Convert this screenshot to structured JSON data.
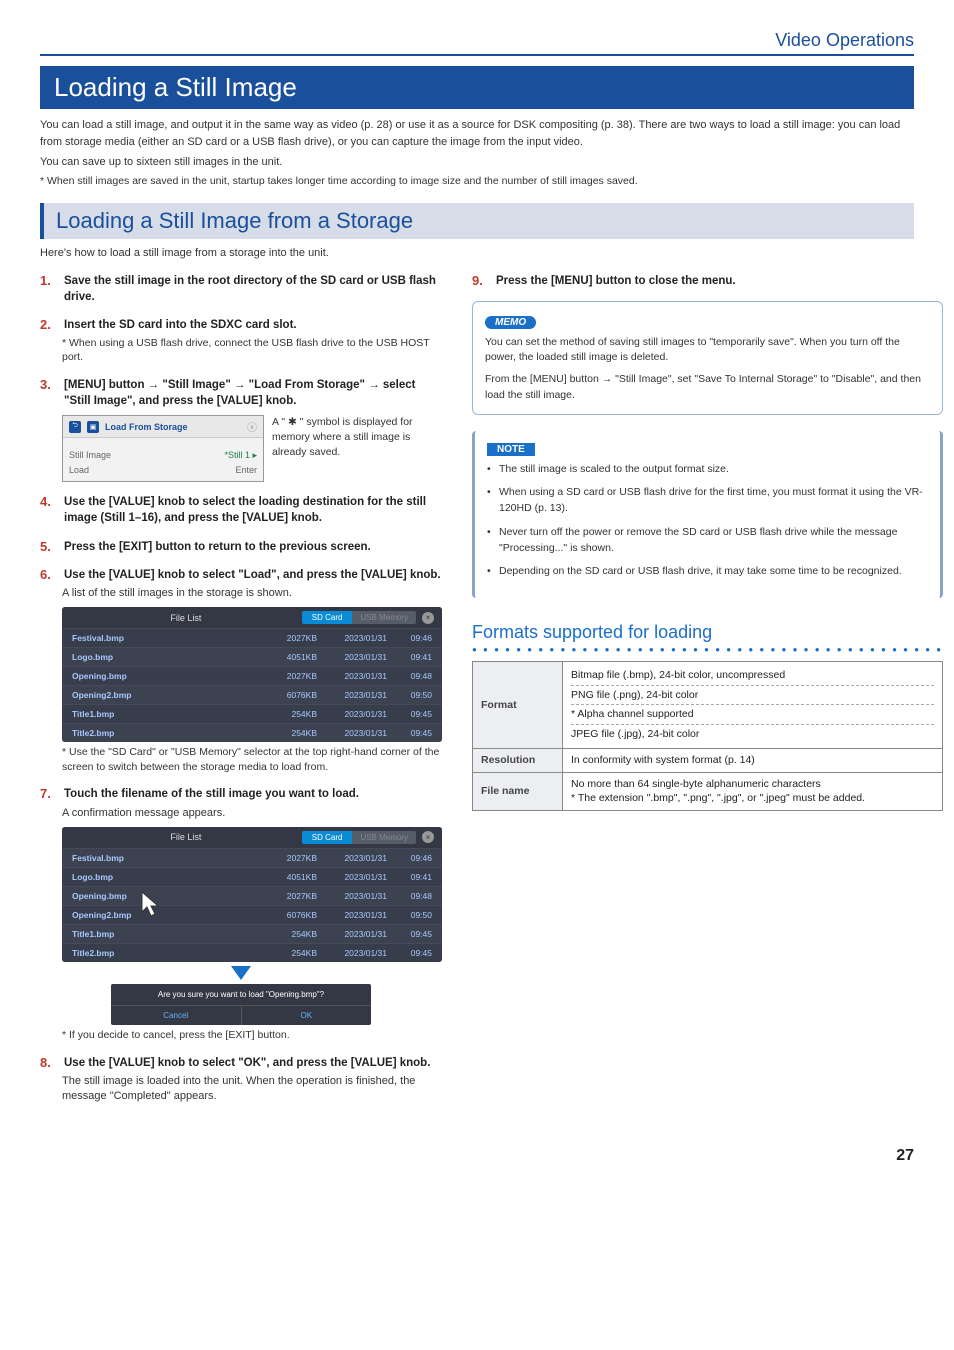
{
  "header": {
    "section": "Video Operations"
  },
  "h1": "Loading a Still Image",
  "intro1": "You can load a still image, and output it in the same way as video (p. 28) or use it as a source for DSK compositing (p. 38). There are two ways to load a still image: you can load from storage media (either an SD card or a USB flash drive), or you can capture the image from the input video.",
  "intro2": "You can save up to sixteen still images in the unit.",
  "footnote_top": "* When still images are saved in the unit, startup takes longer time according to image size and the number of still images saved.",
  "h2": "Loading a Still Image from a Storage",
  "h2_sub": "Here's how to load a still image from a storage into the unit.",
  "steps": {
    "s1": {
      "n": "1.",
      "t": "Save the still image in the root directory of the SD card or USB flash drive."
    },
    "s2": {
      "n": "2.",
      "t": "Insert the SD card into the SDXC card slot.",
      "note": "* When using a USB flash drive, connect the USB flash drive to the USB HOST port."
    },
    "s3": {
      "n": "3.",
      "t": "[MENU] button → \"Still Image\" → \"Load From Storage\" → select \"Still Image\", and press the [VALUE] knob."
    },
    "s3_ui": {
      "title": "Load From Storage",
      "row1": {
        "k": "Still Image",
        "v": "*Still 1  ▸"
      },
      "row2": {
        "k": "Load",
        "v": "Enter"
      },
      "side": "A \" ✱ \" symbol is displayed for memory where a still image is already saved."
    },
    "s4": {
      "n": "4.",
      "t": "Use the [VALUE] knob to select the loading destination for the still image (Still 1–16), and press the [VALUE] knob."
    },
    "s5": {
      "n": "5.",
      "t": "Press the [EXIT] button to return to the previous screen."
    },
    "s6": {
      "n": "6.",
      "t": "Use the [VALUE] knob to select \"Load\", and press the [VALUE] knob.",
      "plain": "A list of the still images in the storage is shown."
    },
    "filelist": {
      "title": "File List",
      "tab1": "SD Card",
      "tab2": "USB Memory",
      "rows": [
        {
          "name": "Festival.bmp",
          "size": "2027KB",
          "date": "2023/01/31",
          "time": "09:46"
        },
        {
          "name": "Logo.bmp",
          "size": "4051KB",
          "date": "2023/01/31",
          "time": "09:41"
        },
        {
          "name": "Opening.bmp",
          "size": "2027KB",
          "date": "2023/01/31",
          "time": "09:48"
        },
        {
          "name": "Opening2.bmp",
          "size": "6076KB",
          "date": "2023/01/31",
          "time": "09:50"
        },
        {
          "name": "Title1.bmp",
          "size": "254KB",
          "date": "2023/01/31",
          "time": "09:45"
        },
        {
          "name": "Title2.bmp",
          "size": "254KB",
          "date": "2023/01/31",
          "time": "09:45"
        }
      ]
    },
    "s6_note": "* Use the \"SD Card\" or \"USB Memory\" selector at the top right-hand corner of the screen to switch between the storage media to load from.",
    "s7": {
      "n": "7.",
      "t": "Touch the filename of the still image you want to load.",
      "plain": "A confirmation message appears."
    },
    "confirm": {
      "q": "Are you sure you want to load \"Opening.bmp\"?",
      "cancel": "Cancel",
      "ok": "OK"
    },
    "s7_note": "* If you decide to cancel, press the [EXIT] button.",
    "s8": {
      "n": "8.",
      "t": "Use the [VALUE] knob to select \"OK\", and press the [VALUE] knob.",
      "plain": "The still image is loaded into the unit. When the operation is finished, the message \"Completed\" appears."
    },
    "s9": {
      "n": "9.",
      "t": "Press the [MENU] button to close the menu."
    }
  },
  "memo": {
    "tag": "MEMO",
    "p1": "You can set the method of saving still images to \"temporarily save\". When you turn off the power, the loaded still image is deleted.",
    "p2": "From the [MENU] button → \"Still Image\", set \"Save To Internal Storage\" to \"Disable\", and then load the still image."
  },
  "note": {
    "tag": "NOTE",
    "items": [
      "The still image is scaled to the output format size.",
      "When using a SD card or USB flash drive for the first time, you must format it using the VR-120HD (p. 13).",
      "Never turn off the power or remove the SD card or USB flash drive while the message \"Processing...\" is shown.",
      "Depending on the SD card or USB flash drive, it may take some time to be recognized."
    ]
  },
  "formats": {
    "h": "Formats supported for loading",
    "format_label": "Format",
    "format_rows": [
      "Bitmap file (.bmp), 24-bit color, uncompressed",
      "PNG file (.png), 24-bit color",
      "* Alpha channel supported",
      "JPEG file (.jpg), 24-bit color"
    ],
    "res_label": "Resolution",
    "res_val": "In conformity with system format (p. 14)",
    "fname_label": "File name",
    "fname_val": "No more than 64 single-byte alphanumeric characters\n* The extension \".bmp\", \".png\", \".jpg\", or \".jpeg\" must be added."
  },
  "page": "27"
}
